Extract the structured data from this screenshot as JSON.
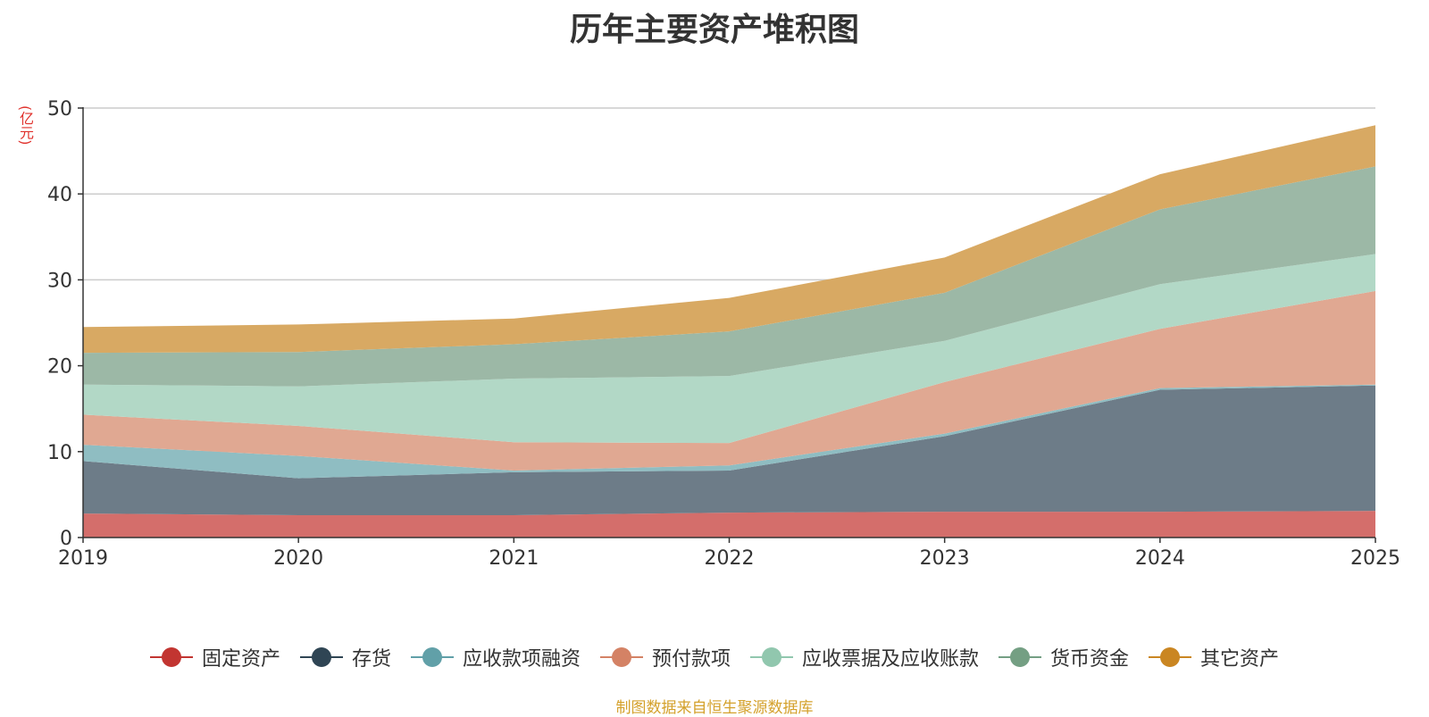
{
  "chart_data": {
    "type": "area",
    "stacked": true,
    "title": "历年主要资产堆积图",
    "ylabel": "(亿元)",
    "xlabel": "",
    "categories": [
      "2019",
      "2020",
      "2021",
      "2022",
      "2023",
      "2024",
      "2025"
    ],
    "ylim": [
      0,
      50
    ],
    "yticks": [
      0,
      10,
      20,
      30,
      40,
      50
    ],
    "grid": true,
    "legend_position": "bottom",
    "series": [
      {
        "name": "固定资产",
        "color": "#c23531",
        "fill": "#d46e6b",
        "values": [
          2.8,
          2.6,
          2.6,
          2.9,
          3.0,
          3.0,
          3.1
        ]
      },
      {
        "name": "存货",
        "color": "#2f4554",
        "fill": "#6d7c88",
        "values": [
          6.1,
          4.3,
          5.0,
          4.9,
          8.8,
          14.2,
          14.6
        ]
      },
      {
        "name": "应收款项融资",
        "color": "#61a0a8",
        "fill": "#8fbdc2",
        "values": [
          1.9,
          2.6,
          0.2,
          0.6,
          0.3,
          0.2,
          0.1
        ]
      },
      {
        "name": "预付款项",
        "color": "#d48265",
        "fill": "#e0a892",
        "values": [
          3.5,
          3.5,
          3.3,
          2.6,
          6.0,
          6.9,
          10.9
        ]
      },
      {
        "name": "应收票据及应收账款",
        "color": "#91c7ae",
        "fill": "#b2d8c6",
        "values": [
          3.5,
          4.6,
          7.4,
          7.8,
          4.8,
          5.2,
          4.3
        ]
      },
      {
        "name": "货币资金",
        "color": "#749f83",
        "fill": "#9cb8a6",
        "values": [
          3.7,
          4.0,
          4.0,
          5.2,
          5.6,
          8.7,
          10.2
        ]
      },
      {
        "name": "其它资产",
        "color": "#ca8622",
        "fill": "#d8a963",
        "values": [
          3.0,
          3.2,
          3.0,
          3.9,
          4.1,
          4.1,
          4.8
        ]
      }
    ]
  },
  "footer": {
    "source": "制图数据来自恒生聚源数据库"
  }
}
